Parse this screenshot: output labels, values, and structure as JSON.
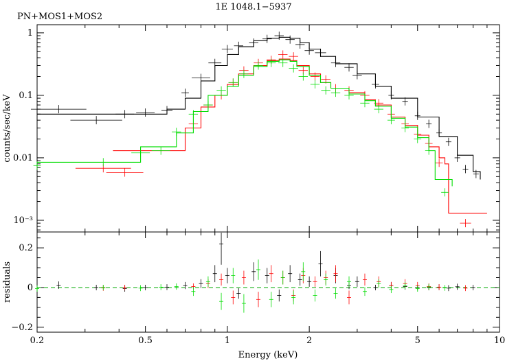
{
  "chart_data": {
    "type": "line",
    "title": "1E 1048.1−5937",
    "subtitle": "PN+MOS1+MOS2",
    "xlabel": "Energy (keV)",
    "xscale": "log",
    "xlim": [
      0.2,
      10
    ],
    "xticks": [
      {
        "value": 0.2,
        "label": "0.2"
      },
      {
        "value": 0.5,
        "label": "0.5"
      },
      {
        "value": 1,
        "label": "1"
      },
      {
        "value": 2,
        "label": "2"
      },
      {
        "value": 5,
        "label": "5"
      },
      {
        "value": 10,
        "label": "10"
      }
    ],
    "panels": [
      {
        "name": "spectrum",
        "ylabel": "counts/sec/keV",
        "yscale": "log",
        "ylim": [
          0.00065,
          1.35
        ],
        "yticks": [
          {
            "value": 0.001,
            "label": "10⁻³"
          },
          {
            "value": 0.01,
            "label": "0.01"
          },
          {
            "value": 0.1,
            "label": "0.1"
          },
          {
            "value": 1,
            "label": "1"
          }
        ]
      },
      {
        "name": "residuals",
        "ylabel": "residuals",
        "yscale": "linear",
        "ylim": [
          -0.225,
          0.28
        ],
        "yticks": [
          {
            "value": -0.2,
            "label": "−0.2"
          },
          {
            "value": 0,
            "label": "0"
          },
          {
            "value": 0.2,
            "label": "0.2"
          }
        ]
      }
    ],
    "series": [
      {
        "color": "#000000",
        "model": [
          [
            0.2,
            0.05
          ],
          [
            0.5,
            0.05
          ],
          [
            0.6,
            0.06
          ],
          [
            0.7,
            0.09
          ],
          [
            0.8,
            0.17
          ],
          [
            0.9,
            0.3
          ],
          [
            1.0,
            0.45
          ],
          [
            1.1,
            0.6
          ],
          [
            1.25,
            0.75
          ],
          [
            1.4,
            0.82
          ],
          [
            1.55,
            0.85
          ],
          [
            1.7,
            0.82
          ],
          [
            1.85,
            0.7
          ],
          [
            2.0,
            0.55
          ],
          [
            2.2,
            0.42
          ],
          [
            2.5,
            0.32
          ],
          [
            3.0,
            0.22
          ],
          [
            3.5,
            0.14
          ],
          [
            4.0,
            0.09
          ],
          [
            5.0,
            0.045
          ],
          [
            6.0,
            0.022
          ],
          [
            7.0,
            0.011
          ],
          [
            8.0,
            0.006
          ],
          [
            8.5,
            0.0045
          ]
        ],
        "data": [
          [
            0.24,
            0.06,
            0.03
          ],
          [
            0.33,
            0.04,
            0.028
          ],
          [
            0.42,
            0.05,
            0.01
          ],
          [
            0.5,
            0.053,
            0.01
          ],
          [
            0.6,
            0.058,
            0.006
          ],
          [
            0.7,
            0.11,
            0.004
          ],
          [
            0.8,
            0.19,
            0.01
          ],
          [
            0.9,
            0.33,
            0.007
          ],
          [
            1.0,
            0.55,
            0.006
          ],
          [
            1.1,
            0.62,
            0.005
          ],
          [
            1.25,
            0.7,
            0.005
          ],
          [
            1.4,
            0.8,
            0.005
          ],
          [
            1.55,
            0.9,
            0.005
          ],
          [
            1.7,
            0.78,
            0.005
          ],
          [
            1.85,
            0.65,
            0.005
          ],
          [
            2.0,
            0.52,
            0.005
          ],
          [
            2.2,
            0.48,
            0.006
          ],
          [
            2.5,
            0.33,
            0.005
          ],
          [
            2.8,
            0.28,
            0.005
          ],
          [
            3.0,
            0.21,
            0.005
          ],
          [
            3.5,
            0.15,
            0.004
          ],
          [
            4.0,
            0.1,
            0.003
          ],
          [
            4.5,
            0.08,
            0.003
          ],
          [
            5.0,
            0.047,
            0.003
          ],
          [
            5.5,
            0.035,
            0.003
          ],
          [
            6.0,
            0.025,
            0.003
          ],
          [
            6.5,
            0.018,
            0.003
          ],
          [
            7.0,
            0.01,
            0.003
          ],
          [
            7.5,
            0.0066,
            0.003
          ],
          [
            8.2,
            0.0055,
            0.003
          ]
        ],
        "residuals": [
          [
            0.24,
            0.012
          ],
          [
            0.33,
            0.0
          ],
          [
            0.42,
            -0.005
          ],
          [
            0.5,
            0.0
          ],
          [
            0.6,
            0.002
          ],
          [
            0.7,
            0.01
          ],
          [
            0.8,
            0.02
          ],
          [
            0.9,
            0.07
          ],
          [
            0.95,
            0.22
          ],
          [
            1.0,
            0.06
          ],
          [
            1.1,
            -0.03
          ],
          [
            1.25,
            0.08
          ],
          [
            1.4,
            0.06
          ],
          [
            1.55,
            -0.04
          ],
          [
            1.7,
            0.07
          ],
          [
            1.85,
            0.04
          ],
          [
            2.0,
            0.03
          ],
          [
            2.2,
            0.12
          ],
          [
            2.5,
            0.06
          ],
          [
            2.8,
            0.01
          ],
          [
            3.0,
            0.03
          ],
          [
            3.5,
            0.0
          ],
          [
            4.0,
            0.01
          ],
          [
            4.5,
            0.005
          ],
          [
            5.0,
            0.0
          ],
          [
            5.5,
            0.0
          ],
          [
            6.0,
            0.002
          ],
          [
            6.5,
            -0.003
          ],
          [
            7.0,
            0.004
          ],
          [
            8.0,
            0.0
          ]
        ]
      },
      {
        "color": "#ff0000",
        "model": [
          [
            0.38,
            0.013
          ],
          [
            0.65,
            0.013
          ],
          [
            0.7,
            0.03
          ],
          [
            0.8,
            0.065
          ],
          [
            0.9,
            0.1
          ],
          [
            1.0,
            0.15
          ],
          [
            1.1,
            0.22
          ],
          [
            1.25,
            0.3
          ],
          [
            1.4,
            0.36
          ],
          [
            1.55,
            0.38
          ],
          [
            1.7,
            0.36
          ],
          [
            1.8,
            0.3
          ],
          [
            2.0,
            0.22
          ],
          [
            2.2,
            0.16
          ],
          [
            2.4,
            0.13
          ],
          [
            2.8,
            0.11
          ],
          [
            3.2,
            0.085
          ],
          [
            3.5,
            0.07
          ],
          [
            4.0,
            0.045
          ],
          [
            4.5,
            0.033
          ],
          [
            5.0,
            0.023
          ],
          [
            5.5,
            0.015
          ],
          [
            6.0,
            0.01
          ],
          [
            6.3,
            0.008
          ],
          [
            6.5,
            0.0013
          ],
          [
            9.0,
            0.0013
          ]
        ],
        "data": [
          [
            0.35,
            0.0068,
            0.03
          ],
          [
            0.42,
            0.0058,
            0.02
          ],
          [
            0.75,
            0.035,
            0.005
          ],
          [
            0.85,
            0.07,
            0.005
          ],
          [
            0.95,
            0.1,
            0.005
          ],
          [
            1.05,
            0.16,
            0.005
          ],
          [
            1.15,
            0.25,
            0.005
          ],
          [
            1.3,
            0.33,
            0.005
          ],
          [
            1.45,
            0.37,
            0.005
          ],
          [
            1.6,
            0.45,
            0.005
          ],
          [
            1.75,
            0.42,
            0.005
          ],
          [
            1.9,
            0.25,
            0.005
          ],
          [
            2.1,
            0.2,
            0.005
          ],
          [
            2.3,
            0.18,
            0.005
          ],
          [
            2.5,
            0.13,
            0.005
          ],
          [
            2.8,
            0.12,
            0.005
          ],
          [
            3.2,
            0.1,
            0.005
          ],
          [
            3.6,
            0.075,
            0.005
          ],
          [
            4.0,
            0.05,
            0.004
          ],
          [
            4.5,
            0.035,
            0.004
          ],
          [
            5.0,
            0.024,
            0.004
          ],
          [
            5.5,
            0.017,
            0.004
          ],
          [
            6.0,
            0.0083,
            0.004
          ],
          [
            7.5,
            0.0009,
            0.006
          ]
        ],
        "residuals": [
          [
            0.35,
            -0.002
          ],
          [
            0.42,
            0.0
          ],
          [
            0.75,
            0.005
          ],
          [
            0.85,
            0.02
          ],
          [
            0.95,
            0.04
          ],
          [
            1.05,
            -0.05
          ],
          [
            1.15,
            0.05
          ],
          [
            1.3,
            -0.06
          ],
          [
            1.45,
            0.07
          ],
          [
            1.6,
            0.05
          ],
          [
            1.75,
            -0.04
          ],
          [
            1.9,
            0.06
          ],
          [
            2.1,
            0.03
          ],
          [
            2.3,
            0.05
          ],
          [
            2.5,
            0.07
          ],
          [
            2.8,
            -0.05
          ],
          [
            3.2,
            0.04
          ],
          [
            3.6,
            0.03
          ],
          [
            4.0,
            0.01
          ],
          [
            4.5,
            0.02
          ],
          [
            5.0,
            0.01
          ],
          [
            5.5,
            0.005
          ],
          [
            6.0,
            0.002
          ],
          [
            7.5,
            -0.003
          ]
        ]
      },
      {
        "color": "#00dd00",
        "model": [
          [
            0.2,
            0.0085
          ],
          [
            0.48,
            0.0085
          ],
          [
            0.48,
            0.015
          ],
          [
            0.6,
            0.015
          ],
          [
            0.65,
            0.025
          ],
          [
            0.75,
            0.055
          ],
          [
            0.85,
            0.1
          ],
          [
            0.9,
            0.1
          ],
          [
            1.0,
            0.14
          ],
          [
            1.1,
            0.21
          ],
          [
            1.25,
            0.29
          ],
          [
            1.4,
            0.35
          ],
          [
            1.55,
            0.37
          ],
          [
            1.7,
            0.35
          ],
          [
            1.8,
            0.29
          ],
          [
            2.0,
            0.21
          ],
          [
            2.2,
            0.16
          ],
          [
            2.4,
            0.13
          ],
          [
            2.8,
            0.105
          ],
          [
            3.2,
            0.082
          ],
          [
            3.5,
            0.067
          ],
          [
            4.0,
            0.043
          ],
          [
            4.5,
            0.031
          ],
          [
            5.0,
            0.021
          ],
          [
            5.5,
            0.013
          ],
          [
            5.8,
            0.0045
          ],
          [
            6.7,
            0.0035
          ]
        ],
        "data": [
          [
            0.2,
            0.0075,
            0.004
          ],
          [
            0.35,
            0.0085,
            0.01
          ],
          [
            0.48,
            0.012,
            0.01
          ],
          [
            0.57,
            0.013,
            0.01
          ],
          [
            0.65,
            0.026,
            0.005
          ],
          [
            0.75,
            0.05,
            0.005
          ],
          [
            0.85,
            0.07,
            0.005
          ],
          [
            0.95,
            0.12,
            0.005
          ],
          [
            1.05,
            0.16,
            0.005
          ],
          [
            1.15,
            0.22,
            0.005
          ],
          [
            1.3,
            0.3,
            0.005
          ],
          [
            1.45,
            0.33,
            0.005
          ],
          [
            1.6,
            0.33,
            0.005
          ],
          [
            1.75,
            0.27,
            0.005
          ],
          [
            1.9,
            0.2,
            0.005
          ],
          [
            2.1,
            0.15,
            0.005
          ],
          [
            2.3,
            0.12,
            0.005
          ],
          [
            2.5,
            0.11,
            0.005
          ],
          [
            2.8,
            0.1,
            0.005
          ],
          [
            3.2,
            0.075,
            0.005
          ],
          [
            3.6,
            0.06,
            0.005
          ],
          [
            4.0,
            0.04,
            0.004
          ],
          [
            4.5,
            0.03,
            0.004
          ],
          [
            5.0,
            0.02,
            0.004
          ],
          [
            5.5,
            0.013,
            0.004
          ],
          [
            6.3,
            0.0028,
            0.004
          ]
        ],
        "residuals": [
          [
            0.2,
            -0.005
          ],
          [
            0.35,
            0.0
          ],
          [
            0.48,
            -0.003
          ],
          [
            0.57,
            0.002
          ],
          [
            0.65,
            0.005
          ],
          [
            0.75,
            -0.02
          ],
          [
            0.85,
            0.03
          ],
          [
            0.95,
            -0.07
          ],
          [
            1.05,
            0.06
          ],
          [
            1.15,
            -0.08
          ],
          [
            1.3,
            0.09
          ],
          [
            1.45,
            -0.06
          ],
          [
            1.6,
            0.05
          ],
          [
            1.75,
            -0.05
          ],
          [
            1.9,
            0.08
          ],
          [
            2.1,
            -0.04
          ],
          [
            2.3,
            0.04
          ],
          [
            2.5,
            -0.03
          ],
          [
            2.8,
            0.03
          ],
          [
            3.2,
            -0.02
          ],
          [
            3.6,
            0.02
          ],
          [
            4.0,
            -0.01
          ],
          [
            4.5,
            0.01
          ],
          [
            5.0,
            -0.005
          ],
          [
            5.5,
            0.003
          ],
          [
            6.3,
            -0.002
          ]
        ]
      }
    ]
  }
}
